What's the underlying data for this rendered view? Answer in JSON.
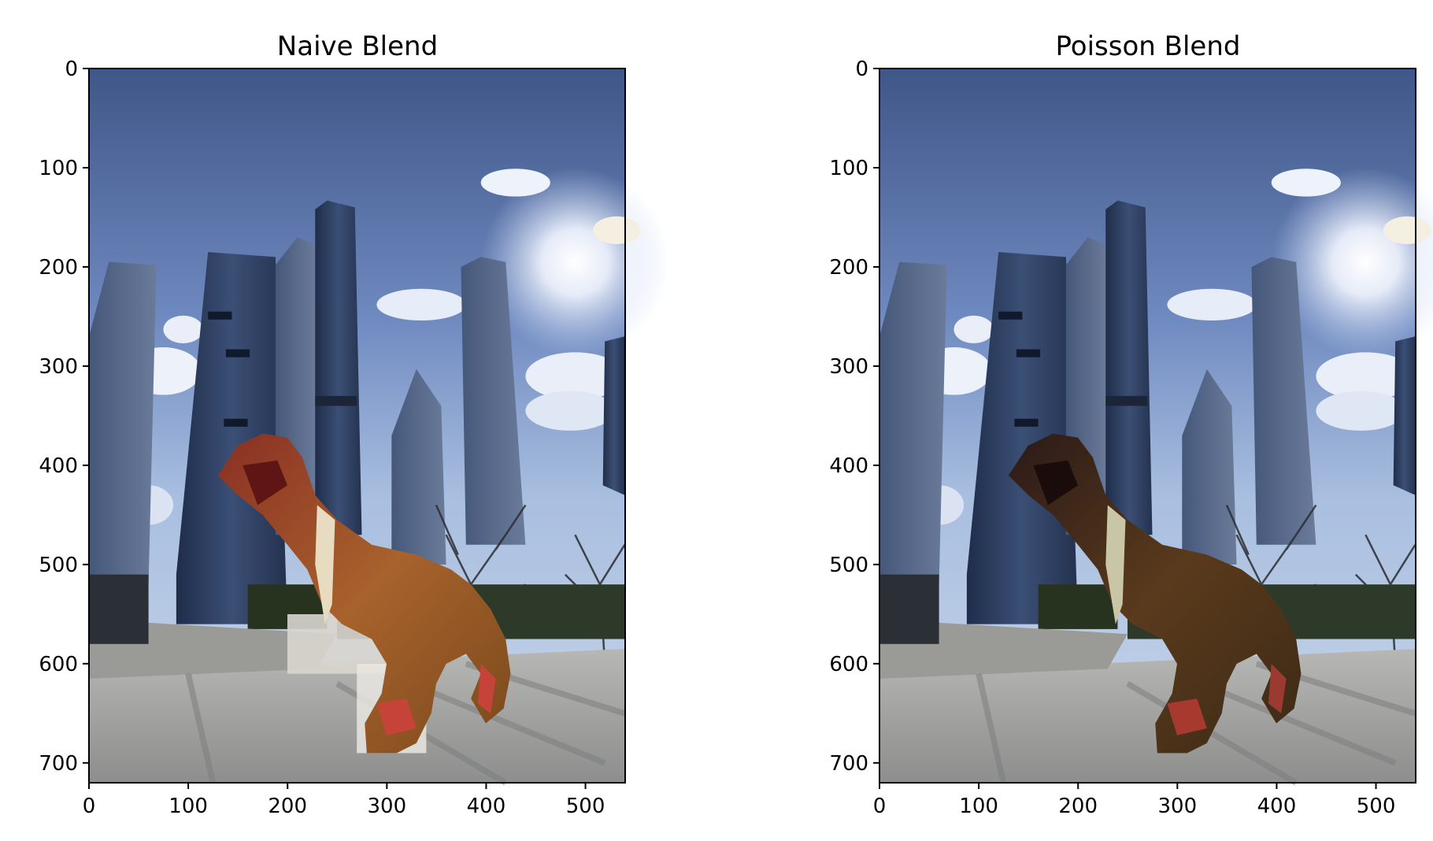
{
  "chart_data": [
    {
      "type": "image",
      "title": "Naive Blend",
      "x_ticks": [
        0,
        100,
        200,
        300,
        400,
        500
      ],
      "y_ticks": [
        0,
        100,
        200,
        300,
        400,
        500,
        600,
        700
      ],
      "xlim": [
        0,
        540
      ],
      "ylim": [
        720,
        0
      ],
      "image": "city plaza with glass skyscrapers, blue sky, sun and clouds; a pasted toy dinosaur figure with scarf, visible cut-out edges"
    },
    {
      "type": "image",
      "title": "Poisson Blend",
      "x_ticks": [
        0,
        100,
        200,
        300,
        400,
        500
      ],
      "y_ticks": [
        0,
        100,
        200,
        300,
        400,
        500,
        600,
        700
      ],
      "xlim": [
        0,
        540
      ],
      "ylim": [
        720,
        0
      ],
      "image": "same city plaza scene; dinosaur figure blended into shadowed tones"
    }
  ]
}
